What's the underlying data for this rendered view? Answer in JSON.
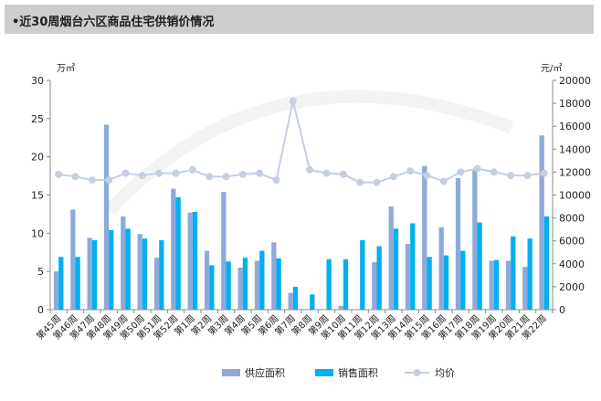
{
  "title": "•近30周烟台六区商品住宅供销价情况",
  "colors": {
    "supply": "#8eaadb",
    "sales": "#00b0f0",
    "price": "#c5cfe0",
    "axis": "#888888",
    "title_bar": "#cdcdcd"
  },
  "chart_data": {
    "type": "bar",
    "title": "•近30周烟台六区商品住宅供销价情况",
    "categories": [
      "第45周",
      "第46周",
      "第47周",
      "第48周",
      "第49周",
      "第50周",
      "第51周",
      "第52周",
      "第1周",
      "第2周",
      "第3周",
      "第4周",
      "第5周",
      "第6周",
      "第7周",
      "第8周",
      "第9周",
      "第10周",
      "第11周",
      "第12周",
      "第13周",
      "第14周",
      "第15周",
      "第16周",
      "第17周",
      "第18周",
      "第19周",
      "第20周",
      "第21周",
      "第22周"
    ],
    "series": [
      {
        "name": "供应面积",
        "type": "bar",
        "axis": "left",
        "values": [
          5.0,
          13.1,
          9.4,
          24.2,
          12.2,
          9.9,
          6.8,
          15.8,
          12.7,
          7.7,
          15.4,
          5.5,
          6.4,
          8.8,
          2.2,
          0,
          0,
          0.5,
          0,
          6.2,
          13.5,
          8.6,
          18.8,
          10.8,
          17.2,
          18.2,
          6.4,
          6.4,
          5.6,
          22.8
        ]
      },
      {
        "name": "销售面积",
        "type": "bar",
        "axis": "left",
        "values": [
          6.9,
          6.9,
          9.1,
          10.4,
          10.6,
          9.3,
          9.1,
          14.7,
          12.8,
          5.8,
          6.3,
          6.8,
          7.7,
          6.7,
          3.0,
          2.0,
          6.6,
          6.6,
          9.1,
          8.3,
          10.6,
          11.3,
          6.9,
          7.1,
          7.7,
          11.4,
          6.5,
          9.6,
          9.3,
          12.2
        ]
      },
      {
        "name": "均价",
        "type": "line",
        "axis": "right",
        "values": [
          11800,
          11600,
          11300,
          11300,
          11900,
          11700,
          11900,
          11900,
          12200,
          11600,
          11600,
          11800,
          11900,
          11300,
          18200,
          12200,
          11900,
          11800,
          11100,
          11100,
          11600,
          12100,
          11700,
          11200,
          12000,
          12300,
          12000,
          11700,
          11700,
          11900
        ]
      }
    ],
    "y_left": {
      "unit": "万㎡",
      "min": 0,
      "max": 30,
      "ticks": [
        0,
        5,
        10,
        15,
        20,
        25,
        30
      ]
    },
    "y_right": {
      "unit": "元/㎡",
      "min": 0,
      "max": 20000,
      "ticks": [
        0,
        2000,
        4000,
        6000,
        8000,
        10000,
        12000,
        14000,
        16000,
        18000,
        20000
      ]
    },
    "legend": {
      "position": "bottom",
      "items": [
        "供应面积",
        "销售面积",
        "均价"
      ]
    },
    "grid": false
  }
}
